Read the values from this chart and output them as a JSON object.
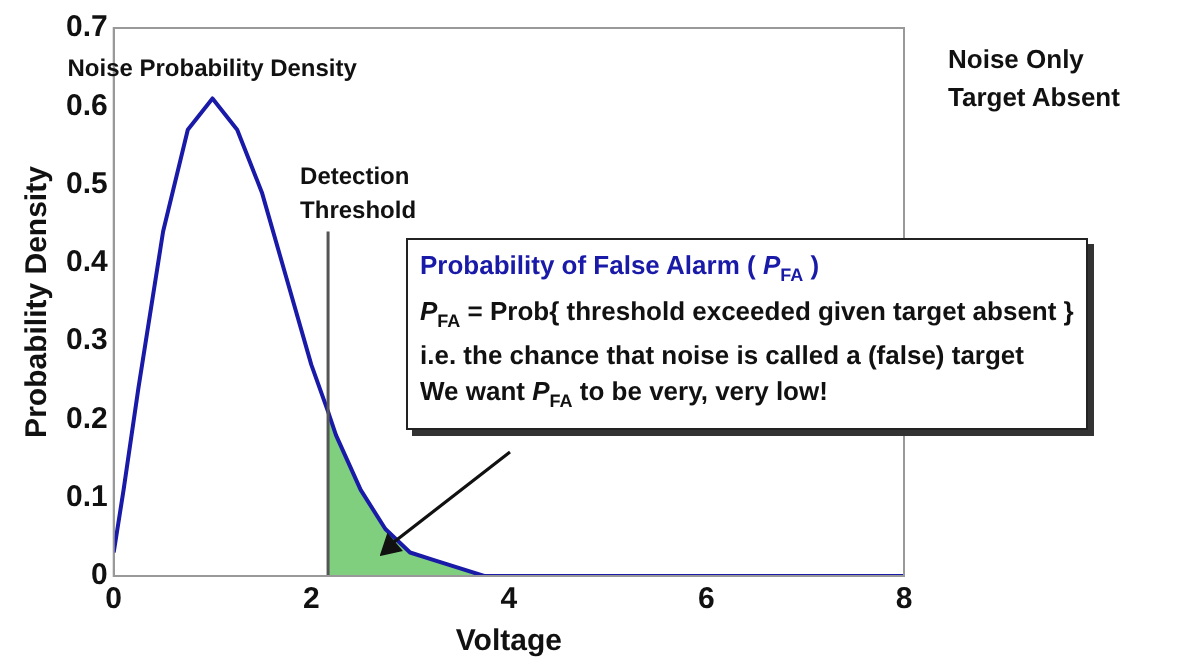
{
  "chart_data": {
    "type": "line",
    "xlabel": "Voltage",
    "ylabel": "Probability Density",
    "xlim": [
      0,
      8
    ],
    "ylim": [
      0,
      0.7
    ],
    "xticks": [
      0,
      2,
      4,
      6,
      8
    ],
    "yticks": [
      0,
      0.1,
      0.2,
      0.3,
      0.4,
      0.5,
      0.6,
      0.7
    ],
    "grid": false,
    "legend": false,
    "marker": "none",
    "line_style": "solid",
    "series": [
      {
        "type": "area",
        "color": "#7fcf7f",
        "x": [
          2.17,
          2.25,
          2.5,
          2.75,
          3,
          3.25,
          3.5,
          3.75,
          4,
          4.5,
          5,
          6,
          7,
          8
        ],
        "values": [
          0.21,
          0.18,
          0.11,
          0.06,
          0.03,
          0.02,
          0.01,
          0.0,
          0.0,
          0.0,
          0.0,
          0.0,
          0.0,
          0.0
        ]
      },
      {
        "color": "#1a1aa8",
        "x": [
          0,
          0.1,
          0.25,
          0.5,
          0.75,
          1,
          1.25,
          1.5,
          1.75,
          2,
          2.17,
          2.25,
          2.5,
          2.75,
          3,
          3.25,
          3.5,
          3.75,
          4,
          4.5,
          5,
          6,
          7,
          8
        ],
        "values": [
          0.03,
          0.11,
          0.24,
          0.44,
          0.57,
          0.61,
          0.57,
          0.49,
          0.38,
          0.27,
          0.21,
          0.18,
          0.11,
          0.06,
          0.03,
          0.02,
          0.01,
          0.0,
          0.0,
          0.0,
          0.0,
          0.0,
          0.0,
          0.0
        ]
      }
    ],
    "ref_lines": [
      {
        "axis": "x",
        "value": 2.17,
        "label": "Detection\nThreshold",
        "color": "#555555"
      }
    ],
    "annotations": [
      {
        "text": "Noise Probability Density",
        "x": 1,
        "y": 0.61
      },
      "Noise Only\nTarget Absent",
      "Probability of False Alarm ( P$_{FA}$ )",
      "P$_{FA}$ = Prob{ threshold exceeded given target absent }",
      "i.e. the chance that noise is called a (false) target",
      "We want P$_{FA}$ to be very, very low!"
    ]
  }
}
